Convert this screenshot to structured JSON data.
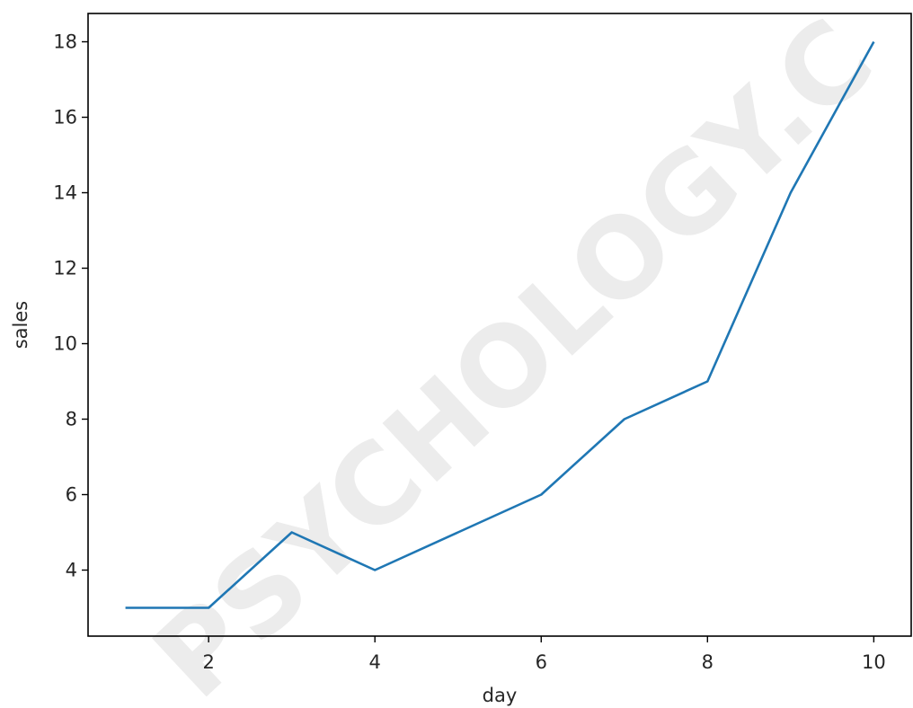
{
  "chart_data": {
    "type": "line",
    "x": [
      1,
      2,
      3,
      4,
      5,
      6,
      7,
      8,
      9,
      10
    ],
    "series": [
      {
        "values": [
          3,
          3,
          5,
          4,
          5,
          6,
          8,
          9,
          14,
          18
        ]
      }
    ],
    "xlabel": "day",
    "ylabel": "sales",
    "xlim": [
      0.55,
      10.45
    ],
    "ylim": [
      2.25,
      18.75
    ],
    "xticks": [
      2,
      4,
      6,
      8,
      10
    ],
    "yticks": [
      4,
      6,
      8,
      10,
      12,
      14,
      16,
      18
    ],
    "grid": false,
    "line_color": "#1f77b4"
  },
  "watermark": {
    "text": "PSYCHOLOGY.C"
  }
}
